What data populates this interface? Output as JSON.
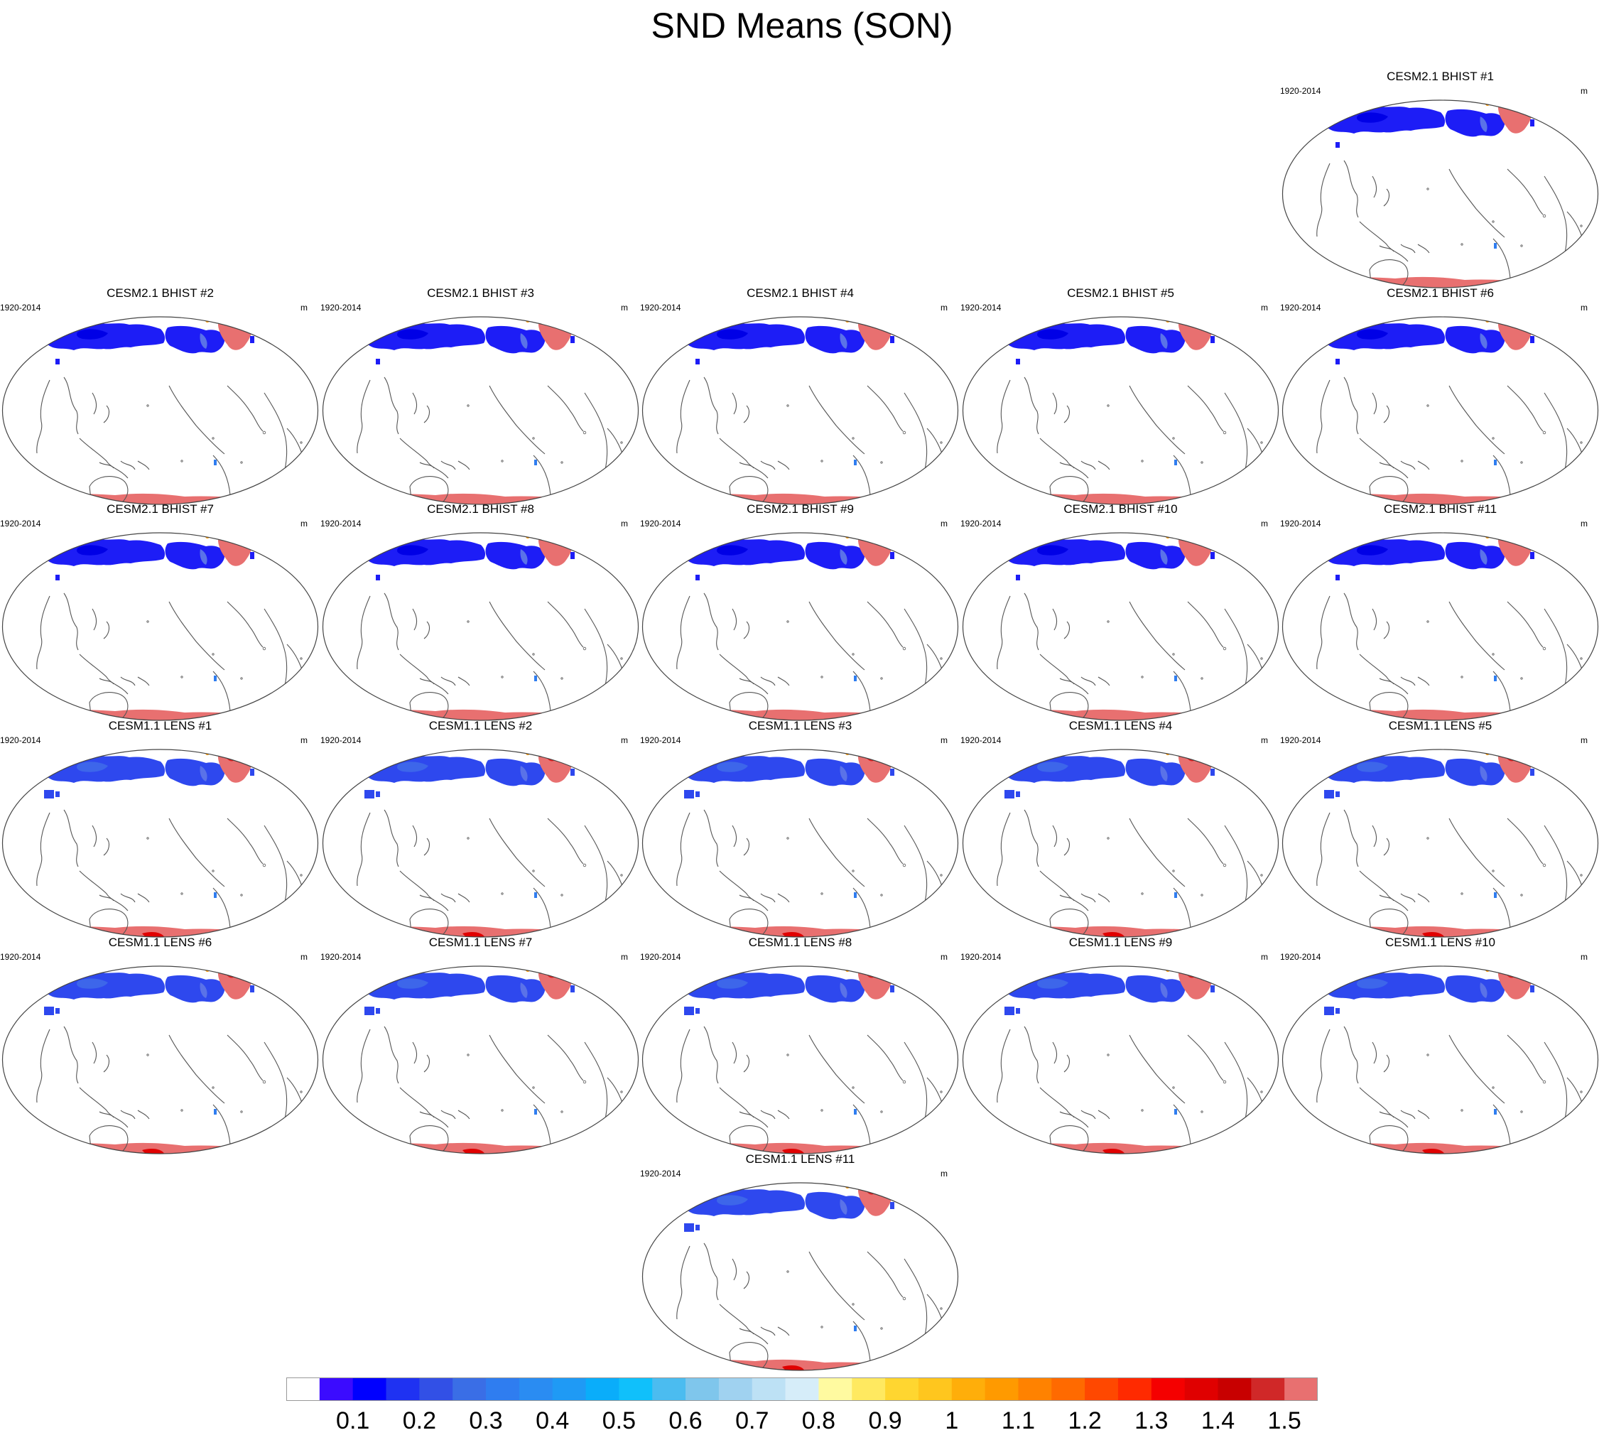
{
  "title": "SND Means (SON)",
  "panel_left_label": "1920-2014",
  "panel_units": "m",
  "panels": [
    {
      "title": "CESM2.1 BHIST #1",
      "style": "bhist"
    },
    {
      "title": "CESM2.1 BHIST #2",
      "style": "bhist"
    },
    {
      "title": "CESM2.1 BHIST #3",
      "style": "bhist"
    },
    {
      "title": "CESM2.1 BHIST #4",
      "style": "bhist"
    },
    {
      "title": "CESM2.1 BHIST #5",
      "style": "bhist"
    },
    {
      "title": "CESM2.1 BHIST #6",
      "style": "bhist"
    },
    {
      "title": "CESM2.1 BHIST #7",
      "style": "bhist"
    },
    {
      "title": "CESM2.1 BHIST #8",
      "style": "bhist"
    },
    {
      "title": "CESM2.1 BHIST #9",
      "style": "bhist"
    },
    {
      "title": "CESM2.1 BHIST #10",
      "style": "bhist"
    },
    {
      "title": "CESM2.1 BHIST #11",
      "style": "bhist"
    },
    {
      "title": "CESM1.1 LENS #1",
      "style": "lens"
    },
    {
      "title": "CESM1.1 LENS #2",
      "style": "lens"
    },
    {
      "title": "CESM1.1 LENS #3",
      "style": "lens"
    },
    {
      "title": "CESM1.1 LENS #4",
      "style": "lens"
    },
    {
      "title": "CESM1.1 LENS #5",
      "style": "lens"
    },
    {
      "title": "CESM1.1 LENS #6",
      "style": "lens"
    },
    {
      "title": "CESM1.1 LENS #7",
      "style": "lens"
    },
    {
      "title": "CESM1.1 LENS #8",
      "style": "lens"
    },
    {
      "title": "CESM1.1 LENS #9",
      "style": "lens"
    },
    {
      "title": "CESM1.1 LENS #10",
      "style": "lens"
    },
    {
      "title": "CESM1.1 LENS #11",
      "style": "lens"
    }
  ],
  "colorbar": {
    "colors": [
      "#ffffff",
      "#3b0bff",
      "#0000ff",
      "#1f32f2",
      "#3250e6",
      "#3a6ee6",
      "#2f7df0",
      "#2a8cf2",
      "#1f9af5",
      "#0aadfa",
      "#10c0fb",
      "#4bbcf0",
      "#7fc6ec",
      "#a0d2f0",
      "#bde1f5",
      "#d6edf9",
      "#fffaa0",
      "#ffe960",
      "#ffd630",
      "#ffc61e",
      "#ffae0a",
      "#ff9a00",
      "#ff8200",
      "#ff6a00",
      "#ff4800",
      "#ff2a00",
      "#f50000",
      "#e00000",
      "#c80000",
      "#d02828",
      "#e87070"
    ],
    "labels": [
      "0.1",
      "0.2",
      "0.3",
      "0.4",
      "0.5",
      "0.6",
      "0.7",
      "0.8",
      "0.9",
      "1",
      "1.1",
      "1.2",
      "1.3",
      "1.4",
      "1.5"
    ]
  }
}
